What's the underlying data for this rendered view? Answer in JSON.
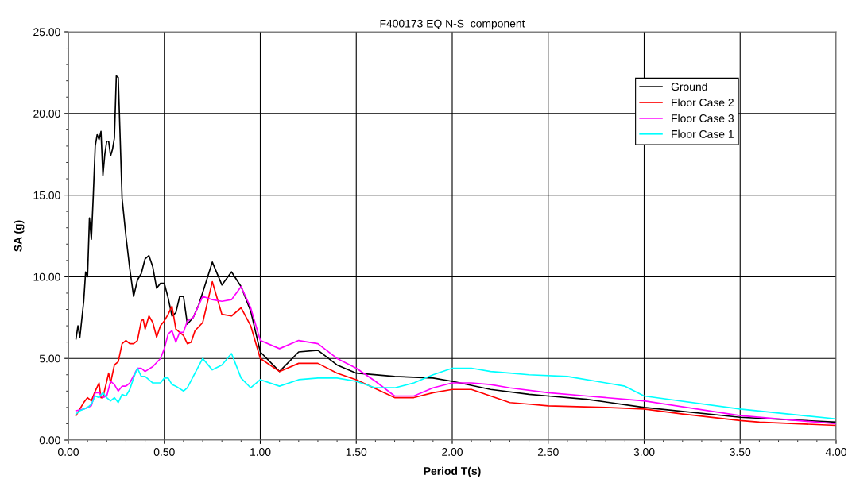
{
  "chart_data": {
    "type": "line",
    "title": "F400173 EQ N-S  component",
    "xlabel": "Period T(s)",
    "ylabel": "SA (g)",
    "xlim": [
      0,
      4
    ],
    "ylim": [
      0,
      25
    ],
    "xticks": [
      {
        "value": 0,
        "label": "0.00"
      },
      {
        "value": 0.5,
        "label": "0.50"
      },
      {
        "value": 1,
        "label": "1.00"
      },
      {
        "value": 1.5,
        "label": "1.50"
      },
      {
        "value": 2,
        "label": "2.00"
      },
      {
        "value": 2.5,
        "label": "2.50"
      },
      {
        "value": 3,
        "label": "3.00"
      },
      {
        "value": 3.5,
        "label": "3.50"
      },
      {
        "value": 4,
        "label": "4.00"
      }
    ],
    "yticks": [
      {
        "value": 0,
        "label": "0.00"
      },
      {
        "value": 5,
        "label": "5.00"
      },
      {
        "value": 10,
        "label": "10.00"
      },
      {
        "value": 15,
        "label": "15.00"
      },
      {
        "value": 20,
        "label": "20.00"
      },
      {
        "value": 25,
        "label": "25.00"
      }
    ],
    "grid": true,
    "legend": "top right",
    "marker": "none",
    "line_style": "solid",
    "series": [
      {
        "name": "Ground",
        "color": "#000000",
        "x": [
          0.04,
          0.05,
          0.06,
          0.08,
          0.09,
          0.1,
          0.11,
          0.12,
          0.13,
          0.14,
          0.15,
          0.16,
          0.17,
          0.18,
          0.19,
          0.2,
          0.21,
          0.22,
          0.23,
          0.24,
          0.25,
          0.26,
          0.28,
          0.3,
          0.32,
          0.34,
          0.36,
          0.38,
          0.4,
          0.42,
          0.44,
          0.46,
          0.48,
          0.5,
          0.52,
          0.54,
          0.56,
          0.58,
          0.6,
          0.62,
          0.65,
          0.68,
          0.75,
          0.8,
          0.85,
          0.9,
          0.95,
          1.0,
          1.1,
          1.2,
          1.3,
          1.4,
          1.5,
          1.7,
          1.9,
          2.0,
          2.2,
          2.4,
          2.5,
          2.7,
          3.0,
          3.5,
          4.0
        ],
        "values": [
          6.2,
          7.0,
          6.3,
          8.5,
          10.3,
          10.0,
          13.6,
          12.3,
          15.0,
          18.0,
          18.7,
          18.4,
          18.9,
          16.2,
          17.5,
          18.3,
          18.3,
          17.4,
          17.8,
          18.5,
          22.3,
          22.2,
          14.8,
          12.5,
          10.5,
          8.8,
          9.8,
          10.2,
          11.1,
          11.3,
          10.6,
          9.3,
          9.6,
          9.6,
          8.7,
          7.6,
          7.8,
          8.8,
          8.8,
          7.1,
          7.5,
          8.3,
          10.9,
          9.5,
          10.3,
          9.4,
          7.9,
          5.4,
          4.2,
          5.4,
          5.5,
          4.6,
          4.1,
          3.9,
          3.8,
          3.6,
          3.1,
          2.8,
          2.7,
          2.5,
          2.0,
          1.4,
          1.1
        ]
      },
      {
        "name": "Floor Case 2",
        "color": "#ff0000",
        "x": [
          0.04,
          0.06,
          0.08,
          0.1,
          0.12,
          0.14,
          0.16,
          0.17,
          0.18,
          0.2,
          0.21,
          0.22,
          0.24,
          0.26,
          0.28,
          0.3,
          0.32,
          0.34,
          0.36,
          0.38,
          0.39,
          0.4,
          0.42,
          0.44,
          0.46,
          0.48,
          0.5,
          0.52,
          0.54,
          0.56,
          0.58,
          0.6,
          0.62,
          0.64,
          0.66,
          0.7,
          0.75,
          0.8,
          0.85,
          0.9,
          0.95,
          1.0,
          1.1,
          1.2,
          1.3,
          1.4,
          1.5,
          1.7,
          1.8,
          1.9,
          2.0,
          2.1,
          2.2,
          2.3,
          2.4,
          2.5,
          2.8,
          3.0,
          3.2,
          3.5,
          3.6,
          4.0
        ],
        "values": [
          1.5,
          1.9,
          2.3,
          2.6,
          2.4,
          3.0,
          3.5,
          2.6,
          2.6,
          3.6,
          4.1,
          3.5,
          4.6,
          4.8,
          5.9,
          6.1,
          5.9,
          5.9,
          6.1,
          7.3,
          7.4,
          6.8,
          7.6,
          7.2,
          6.3,
          7.0,
          7.3,
          7.7,
          8.2,
          6.8,
          6.6,
          6.4,
          5.9,
          6.0,
          6.7,
          7.2,
          9.7,
          7.7,
          7.6,
          8.1,
          7.0,
          5.0,
          4.2,
          4.7,
          4.7,
          4.1,
          3.7,
          2.6,
          2.6,
          2.9,
          3.1,
          3.1,
          2.7,
          2.3,
          2.2,
          2.1,
          2.0,
          1.9,
          1.6,
          1.2,
          1.1,
          0.9
        ]
      },
      {
        "name": "Floor Case 3",
        "color": "#ff00ff",
        "x": [
          0.04,
          0.08,
          0.1,
          0.12,
          0.14,
          0.16,
          0.18,
          0.2,
          0.22,
          0.24,
          0.26,
          0.28,
          0.3,
          0.32,
          0.36,
          0.38,
          0.4,
          0.44,
          0.48,
          0.5,
          0.52,
          0.54,
          0.56,
          0.58,
          0.6,
          0.62,
          0.65,
          0.7,
          0.75,
          0.8,
          0.85,
          0.9,
          0.95,
          1.0,
          1.1,
          1.2,
          1.3,
          1.4,
          1.5,
          1.6,
          1.7,
          1.8,
          1.9,
          2.0,
          2.1,
          2.2,
          2.3,
          2.5,
          2.7,
          2.9,
          3.0,
          3.5,
          4.0
        ],
        "values": [
          1.8,
          1.9,
          2.0,
          2.1,
          2.9,
          2.9,
          2.6,
          2.7,
          3.6,
          3.4,
          3.0,
          3.3,
          3.3,
          3.5,
          4.4,
          4.4,
          4.2,
          4.5,
          5.0,
          5.6,
          6.5,
          6.7,
          6.0,
          6.6,
          6.6,
          7.3,
          7.5,
          8.8,
          8.6,
          8.5,
          8.6,
          9.4,
          8.1,
          6.1,
          5.6,
          6.1,
          5.9,
          5.0,
          4.4,
          3.6,
          2.7,
          2.7,
          3.2,
          3.5,
          3.5,
          3.4,
          3.2,
          2.9,
          2.7,
          2.5,
          2.4,
          1.5,
          1.0
        ]
      },
      {
        "name": "Floor Case 1",
        "color": "#00ffff",
        "x": [
          0.04,
          0.06,
          0.08,
          0.1,
          0.12,
          0.14,
          0.16,
          0.18,
          0.2,
          0.22,
          0.24,
          0.26,
          0.28,
          0.3,
          0.32,
          0.34,
          0.36,
          0.38,
          0.4,
          0.44,
          0.48,
          0.5,
          0.52,
          0.54,
          0.56,
          0.6,
          0.62,
          0.7,
          0.75,
          0.8,
          0.85,
          0.9,
          0.95,
          1.0,
          1.1,
          1.2,
          1.3,
          1.4,
          1.5,
          1.6,
          1.7,
          1.8,
          1.9,
          2.0,
          2.1,
          2.2,
          2.3,
          2.4,
          2.6,
          2.8,
          2.9,
          3.0,
          3.5,
          4.0
        ],
        "values": [
          1.6,
          1.8,
          1.9,
          2.0,
          2.2,
          2.7,
          2.6,
          2.9,
          2.6,
          2.4,
          2.6,
          2.3,
          2.8,
          2.7,
          3.1,
          3.8,
          4.4,
          3.9,
          3.9,
          3.5,
          3.5,
          3.8,
          3.8,
          3.4,
          3.3,
          3.0,
          3.2,
          5.0,
          4.3,
          4.6,
          5.3,
          3.8,
          3.2,
          3.7,
          3.3,
          3.7,
          3.8,
          3.8,
          3.6,
          3.2,
          3.2,
          3.5,
          4.0,
          4.4,
          4.4,
          4.2,
          4.1,
          4.0,
          3.9,
          3.5,
          3.3,
          2.7,
          1.9,
          1.3
        ]
      }
    ]
  }
}
